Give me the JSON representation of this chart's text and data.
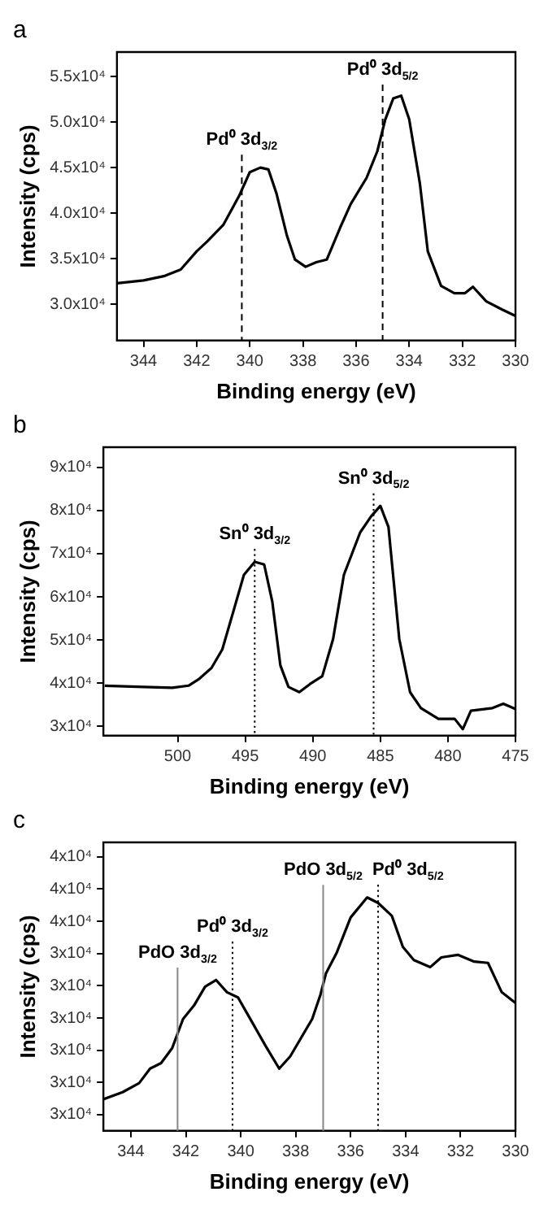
{
  "chart_data": [
    {
      "type": "line",
      "title": "a",
      "xlabel": "Binding energy (eV)",
      "ylabel": "Intensity (cps)",
      "xlim": [
        345,
        330
      ],
      "xticks": [
        344,
        342,
        340,
        338,
        336,
        334,
        332,
        330
      ],
      "ylim": [
        26000,
        57700
      ],
      "yticks": [
        {
          "value": 30000,
          "label": "3.0x10⁴"
        },
        {
          "value": 35000,
          "label": "3.5x10⁴"
        },
        {
          "value": 40000,
          "label": "4.0x10⁴"
        },
        {
          "value": 45000,
          "label": "4.5x10⁴"
        },
        {
          "value": 50000,
          "label": "5.0x10⁴"
        },
        {
          "value": 55000,
          "label": "5.5x10⁴"
        }
      ],
      "series": [
        {
          "color": "#000000",
          "x": [
            345,
            344,
            343.2,
            342.6,
            342,
            341.6,
            341,
            340.4,
            340,
            339.6,
            339.3,
            339,
            338.6,
            338.3,
            337.9,
            337.5,
            337.1,
            336.6,
            336.2,
            335.6,
            335.2,
            334.9,
            334.6,
            334.3,
            334,
            333.6,
            333.3,
            332.8,
            332.3,
            331.9,
            331.6,
            331.1,
            330.5,
            330
          ],
          "values": [
            32300,
            32600,
            33100,
            33800,
            35800,
            36900,
            38700,
            41900,
            44500,
            45000,
            44800,
            42200,
            37500,
            34900,
            34100,
            34600,
            34900,
            38400,
            41000,
            43900,
            46800,
            50300,
            52600,
            52900,
            50300,
            43300,
            35800,
            32000,
            31200,
            31200,
            31900,
            30300,
            29400,
            28700
          ]
        }
      ],
      "ref_lines": [
        {
          "axis": "x",
          "value": 340.3,
          "label": "Pd⁰ 3d$_{3/2}$",
          "line_style": "dashed",
          "color": "#000000"
        },
        {
          "axis": "x",
          "value": 335.0,
          "label": "Pd⁰ 3d$_{5/2}$",
          "line_style": "dashed",
          "color": "#000000"
        }
      ]
    },
    {
      "type": "line",
      "title": "b",
      "xlabel": "Binding energy (eV)",
      "ylabel": "Intensity (cps)",
      "xlim": [
        505.5,
        475
      ],
      "xticks": [
        500,
        495,
        490,
        485,
        480,
        475
      ],
      "ylim": [
        27800,
        94700
      ],
      "yticks": [
        {
          "value": 30000,
          "label": "3x10⁴"
        },
        {
          "value": 40000,
          "label": "4x10⁴"
        },
        {
          "value": 50000,
          "label": "5x10⁴"
        },
        {
          "value": 60000,
          "label": "6x10⁴"
        },
        {
          "value": 70000,
          "label": "7x10⁴"
        },
        {
          "value": 80000,
          "label": "8x10⁴"
        },
        {
          "value": 90000,
          "label": "9x10⁴"
        }
      ],
      "series": [
        {
          "color": "#000000",
          "x": [
            505.4,
            502.5,
            500.4,
            499.2,
            498.4,
            497.5,
            496.7,
            495.9,
            495.1,
            494.3,
            493.6,
            493,
            492.4,
            491.8,
            491,
            490.2,
            489.3,
            488.5,
            487.7,
            486.5,
            485.7,
            485,
            484.4,
            483.6,
            482.8,
            482,
            480.7,
            479.5,
            478.9,
            478.3,
            476.7,
            475.9,
            475
          ],
          "values": [
            39400,
            39100,
            38900,
            39400,
            41000,
            43500,
            47800,
            56400,
            65100,
            68100,
            67500,
            58900,
            44100,
            39100,
            37900,
            39800,
            41600,
            50200,
            65100,
            74900,
            78600,
            81100,
            76200,
            50200,
            37900,
            34200,
            31700,
            31700,
            29300,
            33600,
            34200,
            35200,
            34000
          ]
        }
      ],
      "ref_lines": [
        {
          "axis": "x",
          "value": 494.3,
          "label": "Sn⁰ 3d$_{3/2}$",
          "line_style": "dotted",
          "color": "#000000"
        },
        {
          "axis": "x",
          "value": 485.5,
          "label": "Sn⁰ 3d$_{5/2}$",
          "line_style": "dotted",
          "color": "#000000"
        }
      ]
    },
    {
      "type": "line",
      "title": "c",
      "xlabel": "Binding energy (eV)",
      "ylabel": "Intensity (cps)",
      "xlim": [
        345,
        330
      ],
      "xticks": [
        344,
        342,
        340,
        338,
        336,
        334,
        332,
        330
      ],
      "ylim": [
        28500,
        37450
      ],
      "yticks": [
        {
          "value": 29000,
          "label": "3x10⁴"
        },
        {
          "value": 30000,
          "label": "3x10⁴"
        },
        {
          "value": 31000,
          "label": "3x10⁴"
        },
        {
          "value": 32000,
          "label": "3x10⁴"
        },
        {
          "value": 33000,
          "label": "3x10⁴"
        },
        {
          "value": 34000,
          "label": "3x10⁴"
        },
        {
          "value": 35000,
          "label": "4x10⁴"
        },
        {
          "value": 36000,
          "label": "4x10⁴"
        },
        {
          "value": 37000,
          "label": "4x10⁴"
        }
      ],
      "series": [
        {
          "color": "#000000",
          "x": [
            345,
            344.3,
            343.7,
            343.3,
            342.9,
            342.5,
            342.1,
            341.7,
            341.3,
            340.9,
            340.5,
            340.1,
            339.6,
            339.1,
            338.6,
            338.2,
            337.8,
            337.4,
            337.1,
            336.9,
            336.5,
            336,
            335.4,
            335,
            334.5,
            334.1,
            333.7,
            333.1,
            332.7,
            332.1,
            331.5,
            331,
            330.5,
            330
          ],
          "values": [
            29480,
            29700,
            29980,
            30430,
            30600,
            31060,
            31970,
            32390,
            32970,
            33180,
            32800,
            32640,
            31890,
            31140,
            30430,
            30810,
            31390,
            31970,
            32720,
            33380,
            34040,
            35120,
            35740,
            35570,
            35170,
            34210,
            33800,
            33580,
            33880,
            33960,
            33750,
            33710,
            32800,
            32470
          ]
        }
      ],
      "ref_lines": [
        {
          "axis": "x",
          "value": 342.3,
          "label": "PdO 3d$_{3/2}$",
          "line_style": "solid",
          "color": "#888888"
        },
        {
          "axis": "x",
          "value": 340.3,
          "label": "Pd⁰ 3d$_{3/2}$",
          "line_style": "dotted",
          "color": "#000000"
        },
        {
          "axis": "x",
          "value": 337.0,
          "label": "PdO 3d$_{5/2}$",
          "line_style": "solid",
          "color": "#888888"
        },
        {
          "axis": "x",
          "value": 335.0,
          "label": "Pd⁰ 3d$_{5/2}$",
          "line_style": "dotted",
          "color": "#000000"
        }
      ]
    }
  ]
}
